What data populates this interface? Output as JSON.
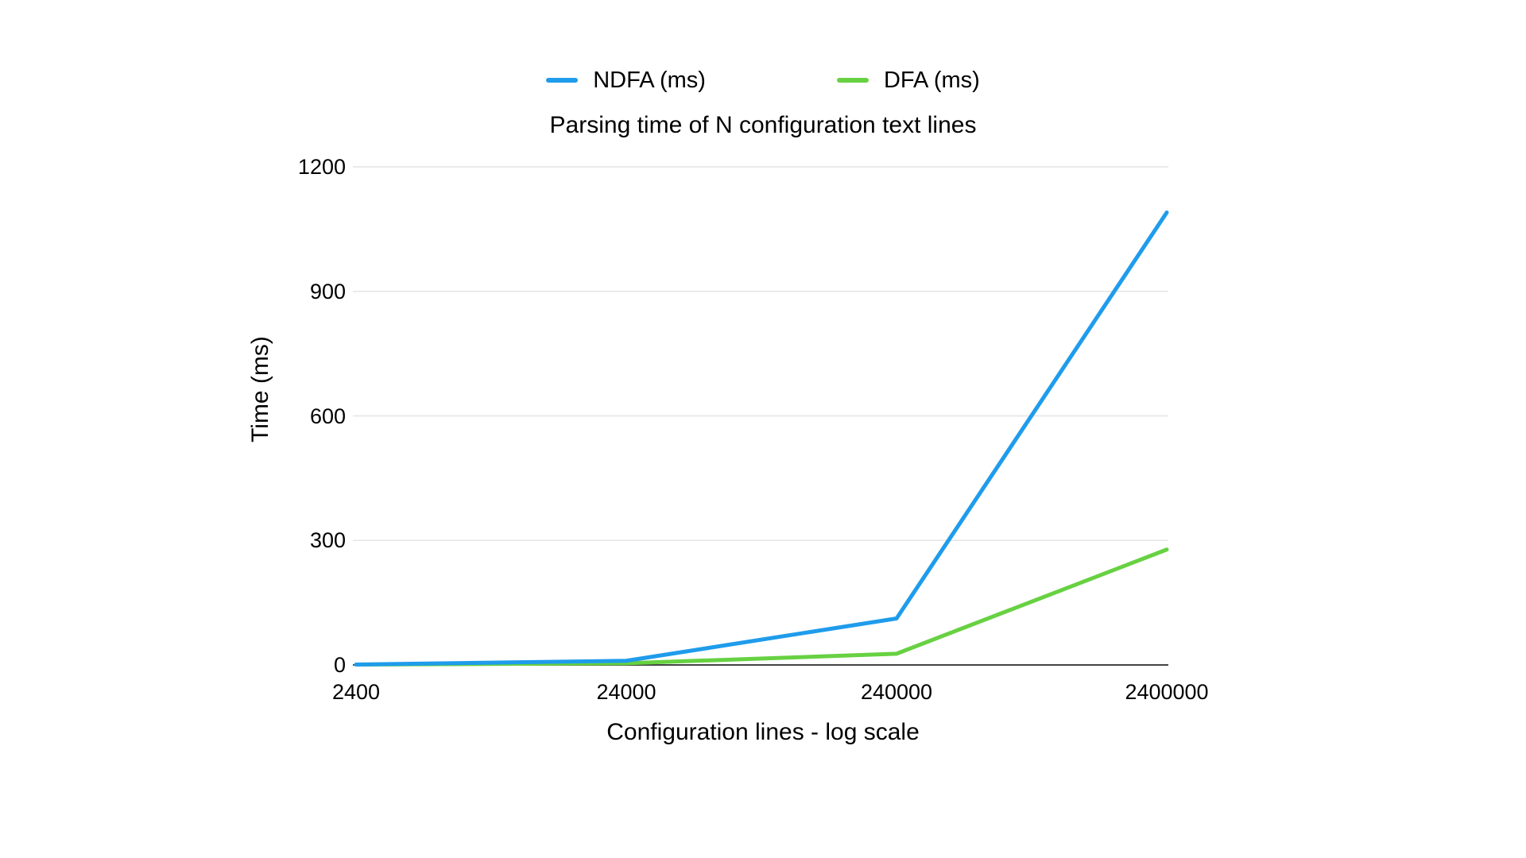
{
  "page": {
    "background": "#ffffff"
  },
  "chart_data": {
    "type": "line",
    "title": "Parsing time of N configuration text lines",
    "xlabel": "Configuration lines - log scale",
    "ylabel": "Time (ms)",
    "x_scale": "log",
    "x": [
      2400,
      24000,
      240000,
      2400000
    ],
    "x_tick_labels": [
      "2400",
      "24000",
      "240000",
      "2400000"
    ],
    "yticks": [
      0,
      300,
      600,
      900,
      1200
    ],
    "ylim": [
      0,
      1200
    ],
    "grid": "horizontal-only",
    "legend_position": "top-center",
    "series": [
      {
        "name": "NDFA (ms)",
        "color": "#1F9CEB",
        "values": [
          1,
          10,
          112,
          1090
        ]
      },
      {
        "name": "DFA (ms)",
        "color": "#67D142",
        "values": [
          1,
          4,
          27,
          278
        ]
      }
    ],
    "colors": {
      "gridline": "#E4E4E4",
      "axis_line": "#444444",
      "text": "#000000"
    }
  }
}
